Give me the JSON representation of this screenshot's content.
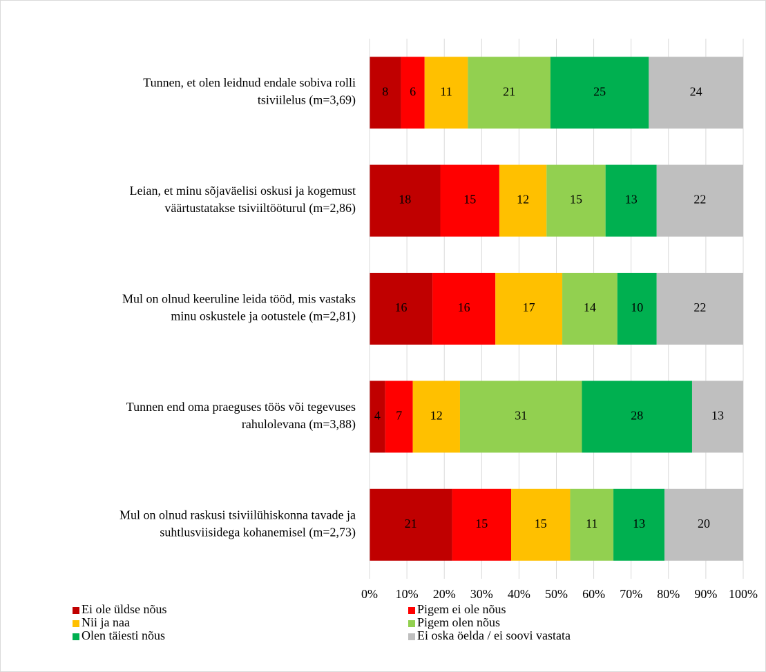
{
  "chart_data": {
    "type": "bar",
    "orientation": "horizontal",
    "stacking": "percent",
    "categories": [
      [
        "Tunnen, et olen leidnud endale sobiva rolli",
        "tsiviilelus (m=3,69)"
      ],
      [
        "Leian, et minu sõjaväelisi oskusi ja kogemust",
        "väärtustatakse tsiviiltööturul (m=2,86)"
      ],
      [
        "Mul on olnud keeruline leida tööd, mis vastaks",
        "minu oskustele ja ootustele (m=2,81)"
      ],
      [
        "Tunnen end oma praeguses töös või tegevuses",
        "rahulolevana (m=3,88)"
      ],
      [
        "Mul on olnud raskusi tsiviilühiskonna tavade ja",
        "suhtlusviisidega kohanemisel (m=2,73)"
      ]
    ],
    "series": [
      {
        "name": "Ei ole üldse nõus",
        "color": "#c00000",
        "values": [
          8,
          18,
          16,
          4,
          21
        ]
      },
      {
        "name": "Pigem ei ole nõus",
        "color": "#ff0000",
        "values": [
          6,
          15,
          16,
          7,
          15
        ]
      },
      {
        "name": "Nii ja naa",
        "color": "#ffc000",
        "values": [
          11,
          12,
          17,
          12,
          15
        ]
      },
      {
        "name": "Pigem olen nõus",
        "color": "#92d050",
        "values": [
          21,
          15,
          14,
          31,
          11
        ]
      },
      {
        "name": "Olen täiesti nõus",
        "color": "#00b050",
        "values": [
          25,
          13,
          10,
          28,
          13
        ]
      },
      {
        "name": "Ei oska öelda / ei soovi vastata",
        "color": "#bfbfbf",
        "values": [
          24,
          22,
          22,
          13,
          20
        ]
      }
    ],
    "xlim": [
      0,
      100
    ],
    "xticks": [
      {
        "value": 0,
        "label": "0%"
      },
      {
        "value": 10,
        "label": "10%"
      },
      {
        "value": 20,
        "label": "20%"
      },
      {
        "value": 30,
        "label": "30%"
      },
      {
        "value": 40,
        "label": "40%"
      },
      {
        "value": 50,
        "label": "50%"
      },
      {
        "value": 60,
        "label": "60%"
      },
      {
        "value": 70,
        "label": "70%"
      },
      {
        "value": 80,
        "label": "80%"
      },
      {
        "value": 90,
        "label": "90%"
      },
      {
        "value": 100,
        "label": "100%"
      }
    ],
    "grid": true,
    "legend": "bottom"
  }
}
